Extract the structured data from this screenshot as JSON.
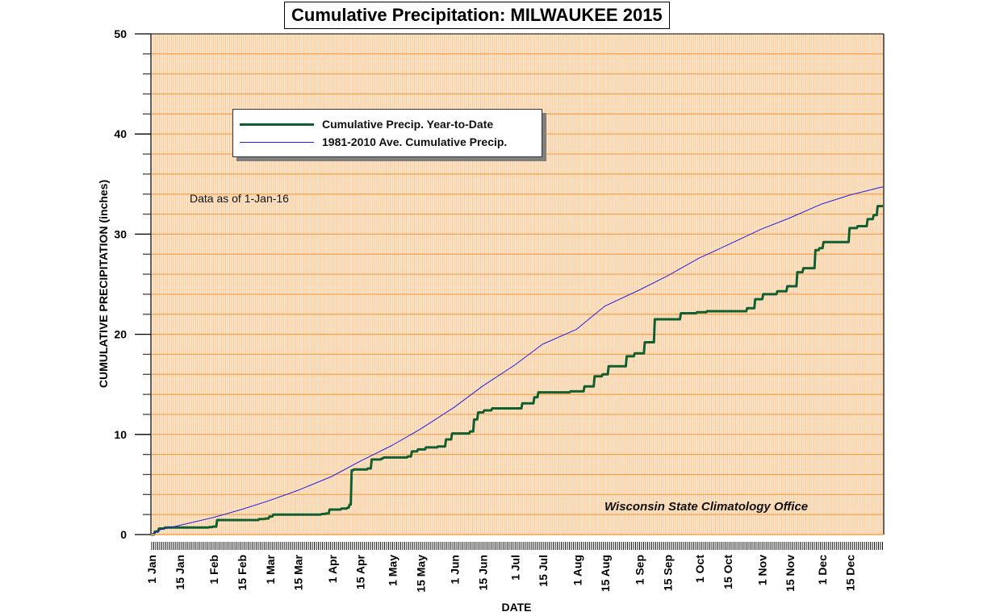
{
  "chart_data": {
    "type": "line",
    "title": "Cumulative Precipitation: MILWAUKEE 2015",
    "xlabel": "DATE",
    "ylabel": "CUMULATIVE PRECIPITATION (inches)",
    "ylim": [
      0,
      50
    ],
    "xlim_day_of_year": [
      1,
      365
    ],
    "y_ticks": [
      0,
      10,
      20,
      30,
      40,
      50
    ],
    "y_minor_step": 2,
    "grid": true,
    "x_tick_labels": [
      {
        "label": "1 Jan",
        "day": 1
      },
      {
        "label": "15 Jan",
        "day": 15
      },
      {
        "label": "1 Feb",
        "day": 32
      },
      {
        "label": "15 Feb",
        "day": 46
      },
      {
        "label": "1 Mar",
        "day": 60
      },
      {
        "label": "15 Mar",
        "day": 74
      },
      {
        "label": "1 Apr",
        "day": 91
      },
      {
        "label": "15 Apr",
        "day": 105
      },
      {
        "label": "1 May",
        "day": 121
      },
      {
        "label": "15 May",
        "day": 135
      },
      {
        "label": "1 Jun",
        "day": 152
      },
      {
        "label": "15 Jun",
        "day": 166
      },
      {
        "label": "1 Jul",
        "day": 182
      },
      {
        "label": "15 Jul",
        "day": 196
      },
      {
        "label": "1 Aug",
        "day": 213
      },
      {
        "label": "15 Aug",
        "day": 227
      },
      {
        "label": "1 Sep",
        "day": 244
      },
      {
        "label": "15 Sep",
        "day": 258
      },
      {
        "label": "1 Oct",
        "day": 274
      },
      {
        "label": "15 Oct",
        "day": 288
      },
      {
        "label": "1 Nov",
        "day": 305
      },
      {
        "label": "15 Nov",
        "day": 319
      },
      {
        "label": "1 Dec",
        "day": 335
      },
      {
        "label": "15 Dec",
        "day": 349
      }
    ],
    "legend_position": "upper-left",
    "series": [
      {
        "name": "Cumulative Precip. Year-to-Date",
        "color": "#0f5f2f",
        "step": true,
        "points": [
          [
            1,
            0.0
          ],
          [
            3,
            0.3
          ],
          [
            5,
            0.6
          ],
          [
            8,
            0.7
          ],
          [
            30,
            0.75
          ],
          [
            32,
            0.8
          ],
          [
            34,
            1.45
          ],
          [
            55,
            1.55
          ],
          [
            58,
            1.6
          ],
          [
            60,
            1.8
          ],
          [
            62,
            2.0
          ],
          [
            86,
            2.05
          ],
          [
            88,
            2.1
          ],
          [
            90,
            2.5
          ],
          [
            96,
            2.6
          ],
          [
            99,
            2.7
          ],
          [
            100,
            3.0
          ],
          [
            101,
            6.4
          ],
          [
            102,
            6.5
          ],
          [
            109,
            6.6
          ],
          [
            111,
            7.5
          ],
          [
            116,
            7.6
          ],
          [
            117,
            7.7
          ],
          [
            129,
            7.8
          ],
          [
            131,
            8.3
          ],
          [
            134,
            8.5
          ],
          [
            138,
            8.7
          ],
          [
            144,
            8.8
          ],
          [
            148,
            9.5
          ],
          [
            151,
            10.1
          ],
          [
            160,
            10.3
          ],
          [
            162,
            11.5
          ],
          [
            164,
            12.2
          ],
          [
            167,
            12.4
          ],
          [
            171,
            12.6
          ],
          [
            186,
            13.1
          ],
          [
            192,
            13.7
          ],
          [
            194,
            14.2
          ],
          [
            210,
            14.3
          ],
          [
            217,
            14.8
          ],
          [
            222,
            15.8
          ],
          [
            226,
            16.0
          ],
          [
            229,
            16.8
          ],
          [
            238,
            17.8
          ],
          [
            242,
            18.1
          ],
          [
            247,
            19.2
          ],
          [
            252,
            21.5
          ],
          [
            265,
            22.1
          ],
          [
            273,
            22.2
          ],
          [
            278,
            22.3
          ],
          [
            298,
            22.6
          ],
          [
            302,
            23.5
          ],
          [
            306,
            24.0
          ],
          [
            313,
            24.3
          ],
          [
            318,
            24.8
          ],
          [
            323,
            26.2
          ],
          [
            326,
            26.6
          ],
          [
            332,
            28.4
          ],
          [
            334,
            28.6
          ],
          [
            336,
            29.2
          ],
          [
            349,
            30.6
          ],
          [
            353,
            30.8
          ],
          [
            358,
            31.5
          ],
          [
            361,
            31.9
          ],
          [
            363,
            32.8
          ],
          [
            365,
            32.8
          ]
        ]
      },
      {
        "name": "1981-2010 Ave. Cumulative Precip.",
        "color": "#2020e0",
        "step": false,
        "points": [
          [
            1,
            0.0
          ],
          [
            6,
            0.5
          ],
          [
            15,
            0.9
          ],
          [
            32,
            1.7
          ],
          [
            46,
            2.5
          ],
          [
            60,
            3.4
          ],
          [
            74,
            4.4
          ],
          [
            91,
            5.8
          ],
          [
            105,
            7.3
          ],
          [
            121,
            8.9
          ],
          [
            135,
            10.5
          ],
          [
            152,
            12.7
          ],
          [
            166,
            14.8
          ],
          [
            182,
            16.9
          ],
          [
            196,
            19.0
          ],
          [
            213,
            20.5
          ],
          [
            227,
            22.8
          ],
          [
            244,
            24.4
          ],
          [
            258,
            25.8
          ],
          [
            274,
            27.6
          ],
          [
            288,
            28.9
          ],
          [
            305,
            30.5
          ],
          [
            319,
            31.6
          ],
          [
            335,
            33.0
          ],
          [
            349,
            33.9
          ],
          [
            365,
            34.7
          ]
        ]
      }
    ],
    "annotations": [
      "Data as of 1-Jan-16",
      "Wisconsin State Climatology Office"
    ]
  },
  "labels": {
    "title": "Cumulative Precipitation: MILWAUKEE 2015",
    "legend_actual": "Cumulative Precip. Year-to-Date",
    "legend_average": "1981-2010 Ave. Cumulative Precip.",
    "data_as_of": "Data as of 1-Jan-16",
    "credit": "Wisconsin State Climatology Office"
  },
  "colors": {
    "plot_background": "#fde8d0",
    "grid_major": "#f6a24c",
    "grid_vertical": "#f8c998",
    "actual_line": "#0f5f2f",
    "average_line": "#2020e0"
  }
}
